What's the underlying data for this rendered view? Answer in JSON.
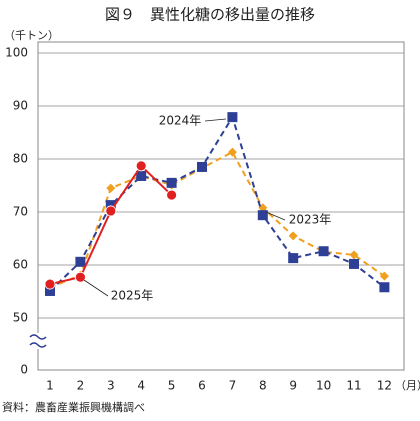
{
  "chart_data": {
    "type": "line",
    "title": "図９　異性化糖の移出量の推移",
    "y_label": "（千トン）",
    "x_label": "（月）",
    "source": "資料：農畜産業振興機構調べ",
    "categories": [
      "1",
      "2",
      "3",
      "4",
      "5",
      "6",
      "7",
      "8",
      "9",
      "10",
      "11",
      "12"
    ],
    "series": [
      {
        "name": "2023年",
        "color": "#f0a020",
        "marker": "diamond",
        "dashed": true,
        "values": [
          55.7,
          58.1,
          74.5,
          76.8,
          75.1,
          78.3,
          81.3,
          70.8,
          65.5,
          62.5,
          61.9,
          57.9
        ]
      },
      {
        "name": "2024年",
        "color": "#2e3f96",
        "marker": "square",
        "dashed": true,
        "values": [
          55.1,
          60.6,
          71.3,
          76.8,
          75.5,
          78.5,
          87.9,
          69.4,
          61.3,
          62.6,
          60.2,
          55.8
        ]
      },
      {
        "name": "2025年",
        "color": "#e02020",
        "marker": "circle",
        "dashed": false,
        "values": [
          56.4,
          57.7,
          70.2,
          78.7,
          73.2,
          null,
          null,
          null,
          null,
          null,
          null,
          null
        ]
      }
    ],
    "ylim": [
      50,
      100
    ],
    "axis_break": [
      0,
      50
    ],
    "yticks": [
      0,
      50,
      60,
      70,
      80,
      90,
      100
    ],
    "grid": true
  }
}
